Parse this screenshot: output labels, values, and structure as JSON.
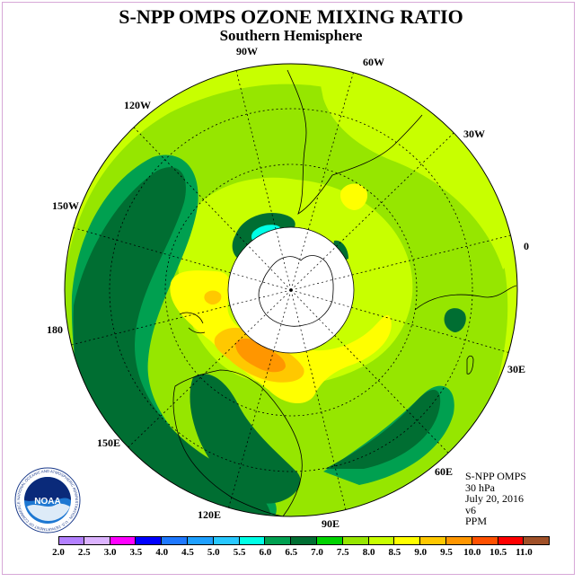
{
  "title": "S-NPP OMPS OZONE MIXING RATIO",
  "subtitle": "Southern Hemisphere",
  "longitude_labels": [
    "90W",
    "60W",
    "30W",
    "0",
    "30E",
    "60E",
    "90E",
    "120E",
    "150E",
    "180",
    "150W",
    "120W"
  ],
  "info": {
    "instrument": "S-NPP OMPS",
    "level": "30 hPa",
    "date": "July 20, 2016",
    "version": "v6",
    "units": "PPM"
  },
  "logo": {
    "text": "NOAA",
    "ring_text": "NATIONAL OCEANIC AND ATMOSPHERIC ADMINISTRATION · U.S. DEPARTMENT OF COMMERCE"
  },
  "colorbar": {
    "ticks": [
      "2.0",
      "2.5",
      "3.0",
      "3.5",
      "4.0",
      "4.5",
      "5.0",
      "5.5",
      "6.0",
      "6.5",
      "7.0",
      "7.5",
      "8.0",
      "8.5",
      "9.0",
      "9.5",
      "10.0",
      "10.5",
      "11.0"
    ],
    "colors": [
      "#b380ff",
      "#dcb3ff",
      "#ff00ff",
      "#0000ff",
      "#1e78ff",
      "#1ea0ff",
      "#28c8ff",
      "#00ffe6",
      "#00a050",
      "#006e32",
      "#00d200",
      "#96e600",
      "#c8ff00",
      "#ffff00",
      "#ffc800",
      "#ff9600",
      "#ff5000",
      "#ff0000",
      "#a05028"
    ]
  },
  "colors": {
    "dark_green": "#006e32",
    "green": "#00a050",
    "lime": "#96e600",
    "yellow_green": "#c8ff00",
    "yellow": "#ffff00",
    "orange": "#ffc800",
    "dark_orange": "#ff9600",
    "cyan": "#00ffe6",
    "polar_mask": "#ffffff",
    "frame": "#d7a8d7"
  }
}
